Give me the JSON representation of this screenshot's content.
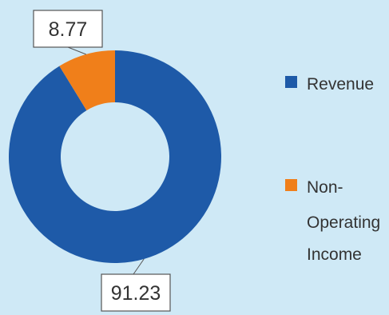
{
  "chart_data": {
    "type": "pie",
    "style": "donut",
    "categories": [
      "Revenue",
      "Non-Operating Income"
    ],
    "values": [
      91.23,
      8.77
    ],
    "data_labels": [
      "91.23",
      "8.77"
    ],
    "colors": [
      "#1e5aa8",
      "#f07f1a"
    ],
    "legend": {
      "placement": "right",
      "entries": [
        {
          "lines": [
            "Revenue"
          ]
        },
        {
          "lines": [
            "Non-",
            "Operating",
            "Income"
          ]
        }
      ]
    },
    "background": "#cfe9f6",
    "title": ""
  }
}
